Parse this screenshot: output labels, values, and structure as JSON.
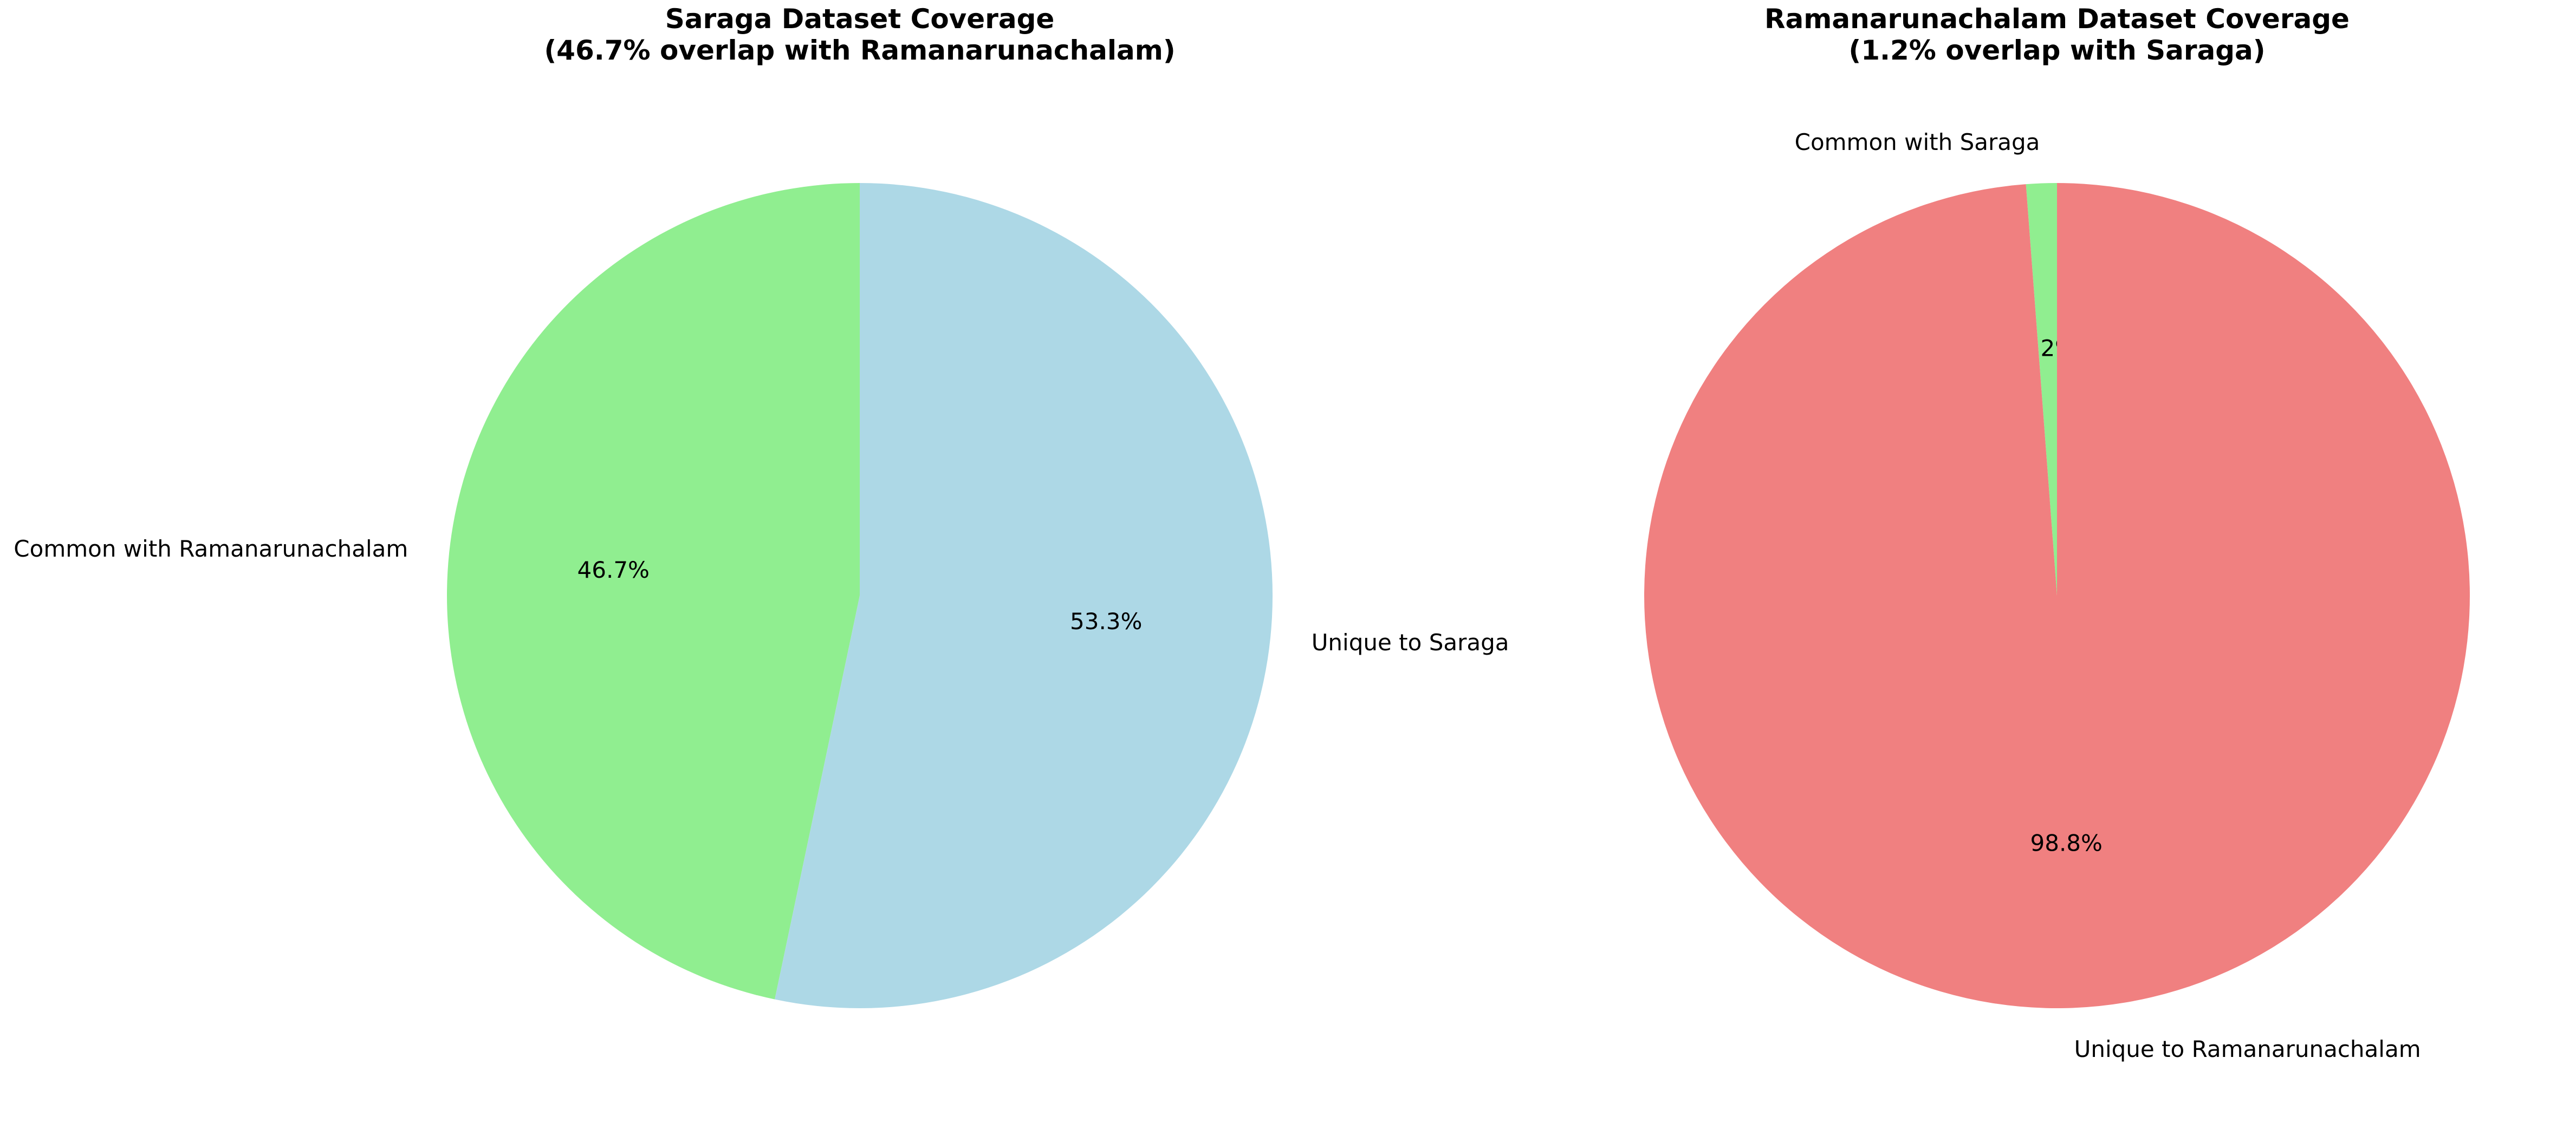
{
  "chart_data": [
    {
      "type": "pie",
      "title": "Saraga Dataset Coverage\n(46.7% overlap with Ramanarunachalam)",
      "slices": [
        {
          "label": "Common with Ramanarunachalam",
          "value": 46.7,
          "pct_label": "46.7%",
          "color": "#90EE90"
        },
        {
          "label": "Unique to Saraga",
          "value": 53.3,
          "pct_label": "53.3%",
          "color": "#ADD8E6"
        }
      ],
      "start_angle": 90,
      "direction": "counterclockwise"
    },
    {
      "type": "pie",
      "title": "Ramanarunachalam Dataset Coverage\n(1.2% overlap with Saraga)",
      "slices": [
        {
          "label": "Common with Saraga",
          "value": 1.2,
          "pct_label": "1.2%",
          "color": "#90EE90"
        },
        {
          "label": "Unique to Ramanarunachalam",
          "value": 98.8,
          "pct_label": "98.8%",
          "color": "#F08080"
        }
      ],
      "start_angle": 90,
      "direction": "counterclockwise"
    }
  ]
}
